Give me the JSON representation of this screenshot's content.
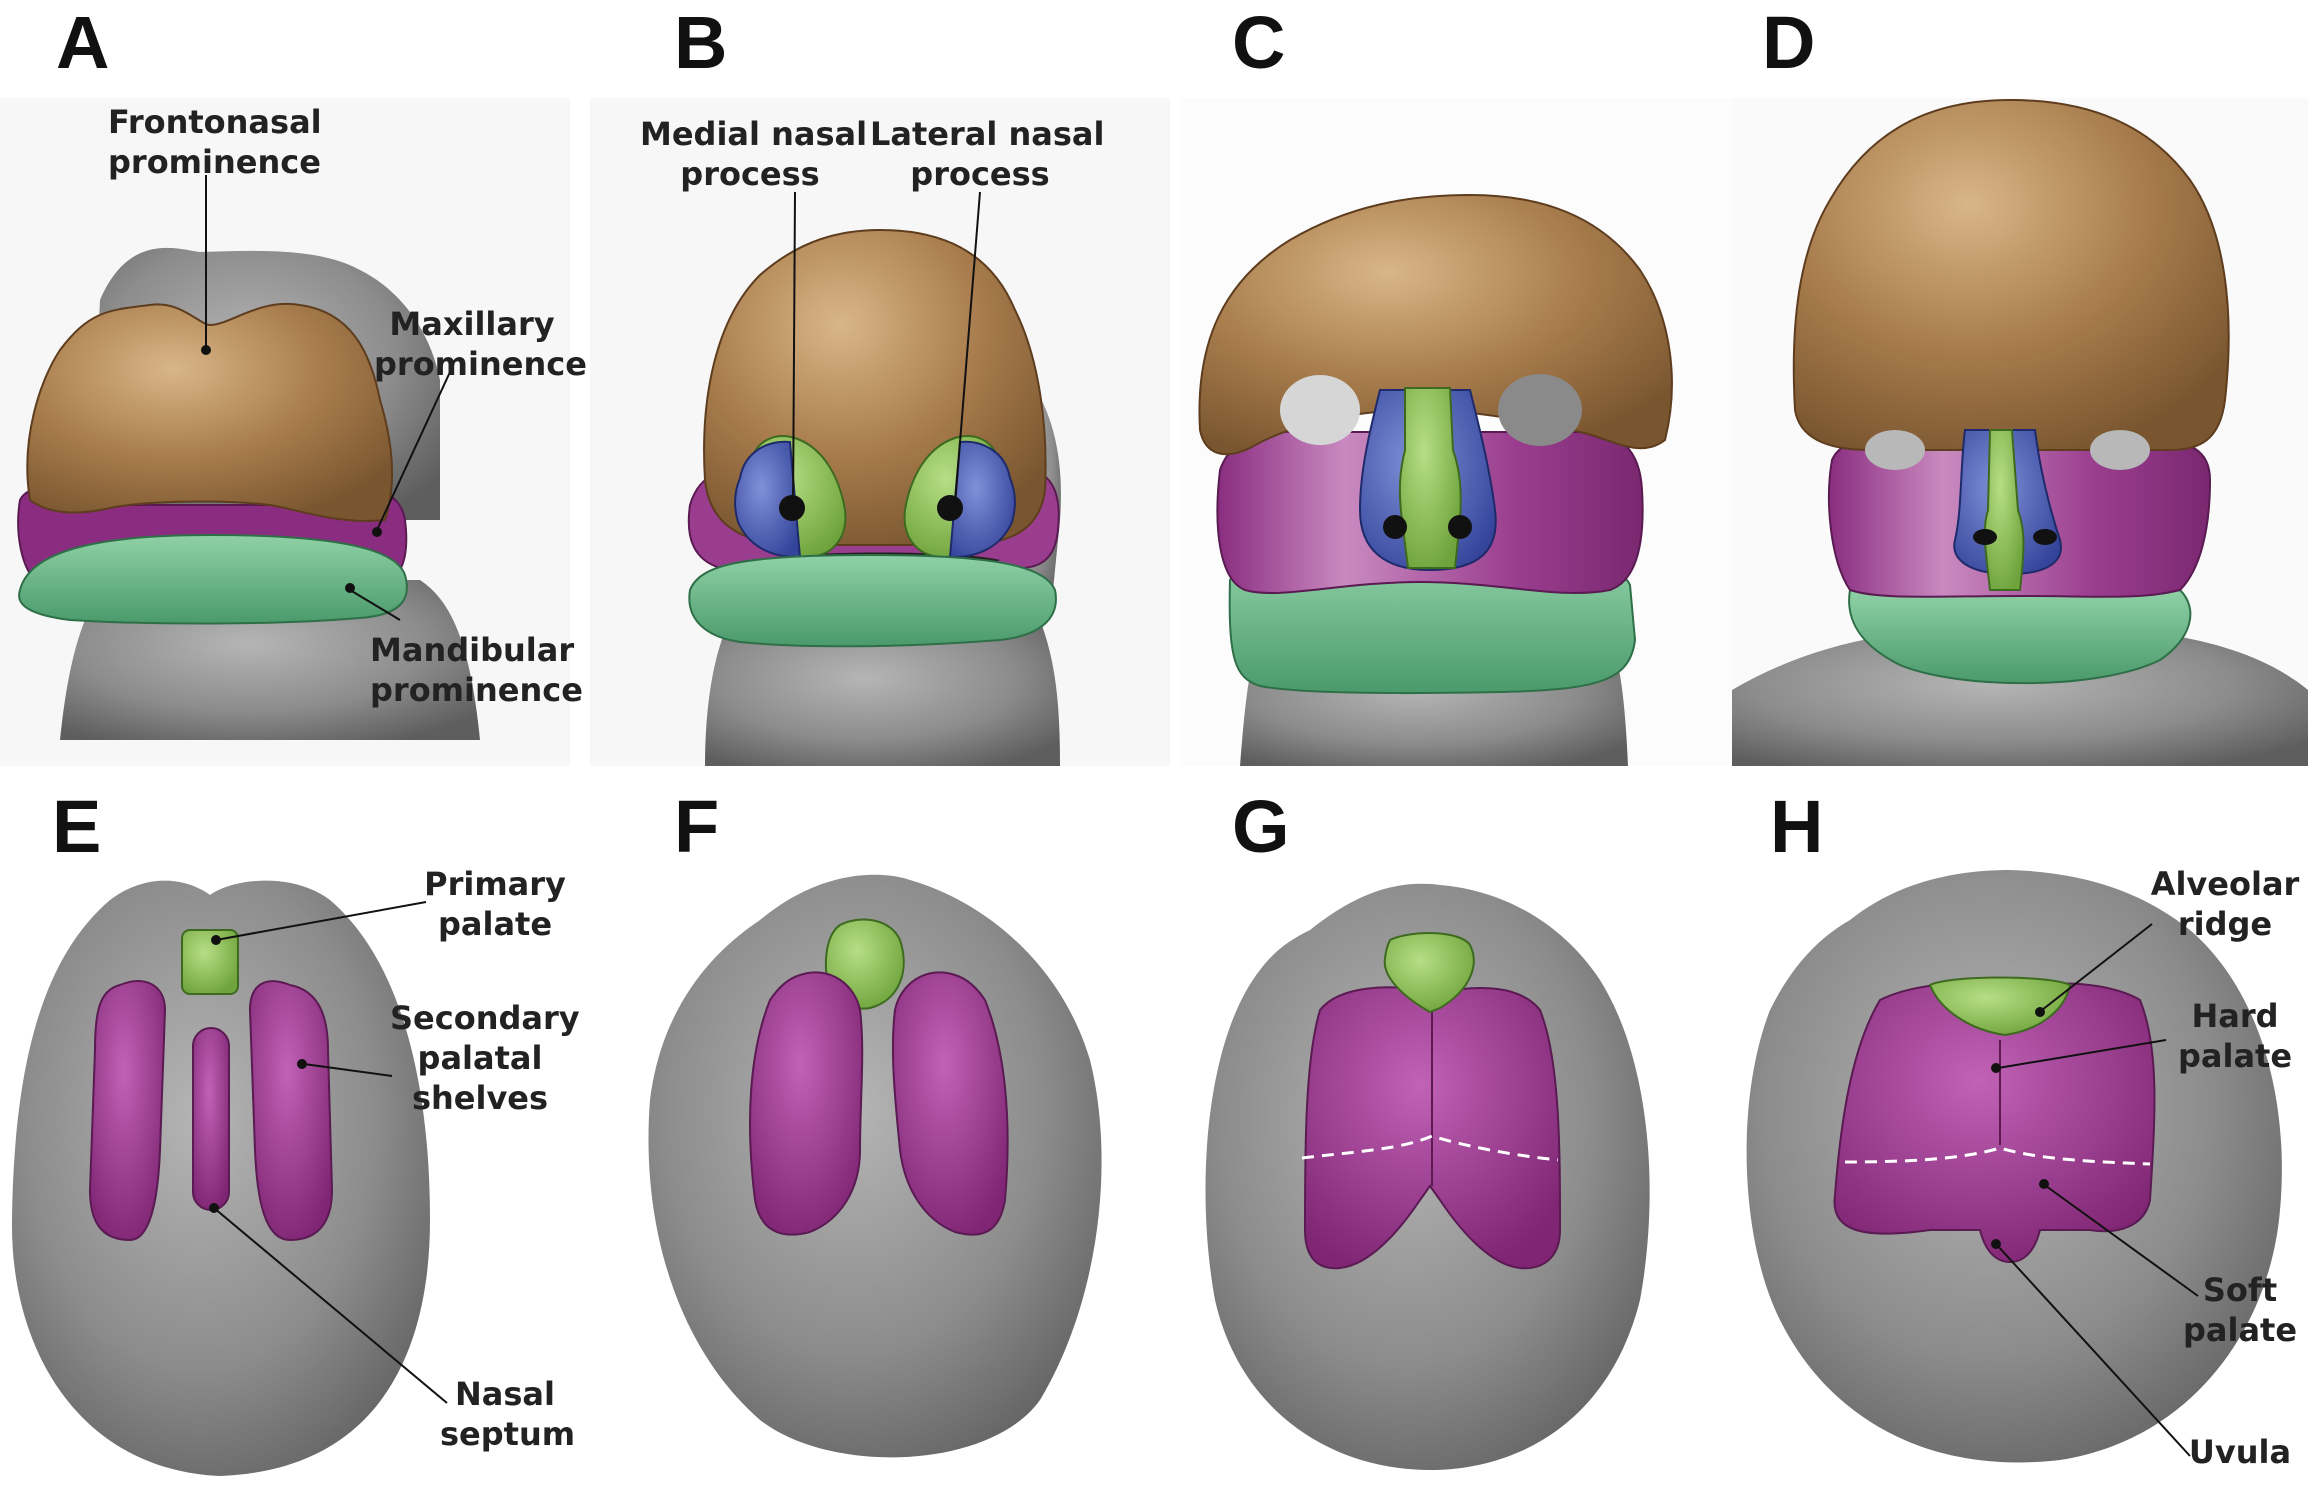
{
  "panels": [
    {
      "id": "A",
      "letter": "A"
    },
    {
      "id": "B",
      "letter": "B"
    },
    {
      "id": "C",
      "letter": "C"
    },
    {
      "id": "D",
      "letter": "D"
    },
    {
      "id": "E",
      "letter": "E"
    },
    {
      "id": "F",
      "letter": "F"
    },
    {
      "id": "G",
      "letter": "G"
    },
    {
      "id": "H",
      "letter": "H"
    }
  ],
  "labels": {
    "frontonasal": [
      "Frontonasal",
      "prominence"
    ],
    "maxillary": [
      "Maxillary",
      "prominence"
    ],
    "mandibular": [
      "Mandibular",
      "prominence"
    ],
    "medial_nasal": [
      "Medial nasal",
      "process"
    ],
    "lateral_nasal": [
      "Lateral nasal",
      "process"
    ],
    "primary_palate": [
      "Primary",
      "palate"
    ],
    "secondary_palatal": [
      "Secondary",
      "palatal",
      "shelves"
    ],
    "nasal_septum": [
      "Nasal",
      "septum"
    ],
    "alveolar_ridge": [
      "Alveolar",
      "ridge"
    ],
    "hard_palate": [
      "Hard",
      "palate"
    ],
    "soft_palate": [
      "Soft",
      "palate"
    ],
    "uvula": [
      "Uvula"
    ]
  },
  "colors": {
    "frontonasal": "#a57a4a",
    "maxillary": "#9a3d8e",
    "mandibular": "#5fae82",
    "medial_nasal": "#8cbd52",
    "lateral_nasal": "#4b5fae",
    "tissue": "#8a8a8a",
    "background": "#f7f7f7"
  }
}
